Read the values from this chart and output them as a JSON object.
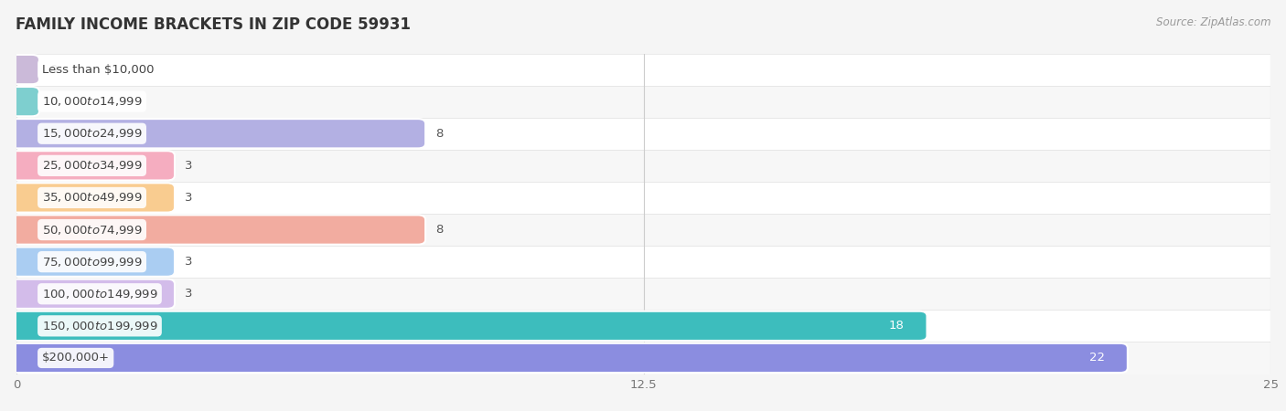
{
  "title": "FAMILY INCOME BRACKETS IN ZIP CODE 59931",
  "source_text": "Source: ZipAtlas.com",
  "categories": [
    "Less than $10,000",
    "$10,000 to $14,999",
    "$15,000 to $24,999",
    "$25,000 to $34,999",
    "$35,000 to $49,999",
    "$50,000 to $74,999",
    "$75,000 to $99,999",
    "$100,000 to $149,999",
    "$150,000 to $199,999",
    "$200,000+"
  ],
  "values": [
    0,
    0,
    8,
    3,
    3,
    8,
    3,
    3,
    18,
    22
  ],
  "bar_colors": [
    "#cbbad9",
    "#7ecfcf",
    "#b3b0e3",
    "#f5adc0",
    "#f9cc90",
    "#f2aca0",
    "#aacdf2",
    "#d3bcea",
    "#3dbdbd",
    "#8b8de0"
  ],
  "row_bg_odd": "#f7f7f7",
  "row_bg_even": "#ffffff",
  "xlim": [
    0,
    25
  ],
  "xticks": [
    0,
    12.5,
    25
  ],
  "title_fontsize": 12,
  "label_fontsize": 9.5,
  "value_fontsize": 9.5
}
